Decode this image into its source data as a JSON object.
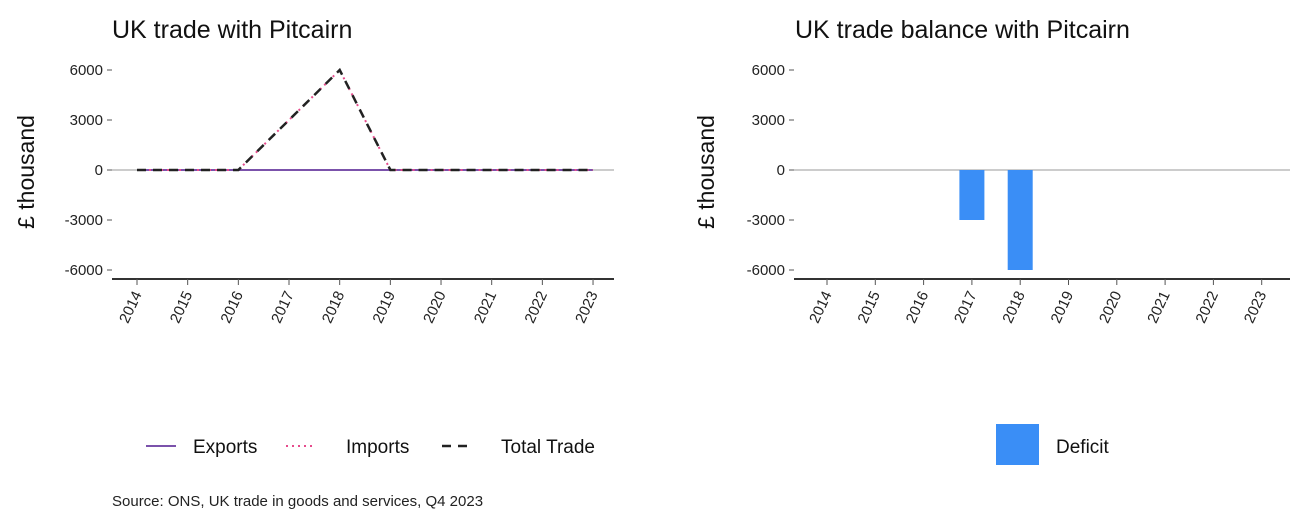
{
  "source": "Source: ONS, UK trade in goods and services, Q4 2023",
  "chart_data": [
    {
      "type": "line",
      "title": "UK trade with Pitcairn",
      "xlabel": "",
      "ylabel": "£ thousand",
      "ylim": [
        -6500,
        6500
      ],
      "yticks": [
        -6000,
        -3000,
        0,
        3000,
        6000
      ],
      "categories": [
        "2014",
        "2015",
        "2016",
        "2017",
        "2018",
        "2019",
        "2020",
        "2021",
        "2022",
        "2023"
      ],
      "series": [
        {
          "name": "Exports",
          "color": "#7b52ab",
          "style": "solid",
          "values": [
            0,
            0,
            0,
            0,
            0,
            0,
            0,
            0,
            0,
            0
          ]
        },
        {
          "name": "Imports",
          "color": "#e64b8c",
          "style": "dotted",
          "values": [
            0,
            0,
            0,
            3000,
            6000,
            0,
            0,
            0,
            0,
            0
          ]
        },
        {
          "name": "Total Trade",
          "color": "#222222",
          "style": "dashed",
          "values": [
            0,
            0,
            0,
            3000,
            6000,
            0,
            0,
            0,
            0,
            0
          ]
        }
      ],
      "grid": false,
      "legend": "bottom"
    },
    {
      "type": "bar",
      "title": "UK trade balance with Pitcairn",
      "xlabel": "",
      "ylabel": "£ thousand",
      "ylim": [
        -6500,
        6500
      ],
      "yticks": [
        -6000,
        -3000,
        0,
        3000,
        6000
      ],
      "categories": [
        "2014",
        "2015",
        "2016",
        "2017",
        "2018",
        "2019",
        "2020",
        "2021",
        "2022",
        "2023"
      ],
      "series": [
        {
          "name": "Deficit",
          "color": "#3a8ef6",
          "values": [
            0,
            0,
            0,
            -3000,
            -6000,
            0,
            0,
            0,
            0,
            0
          ]
        }
      ],
      "grid": false,
      "legend": "bottom"
    }
  ]
}
